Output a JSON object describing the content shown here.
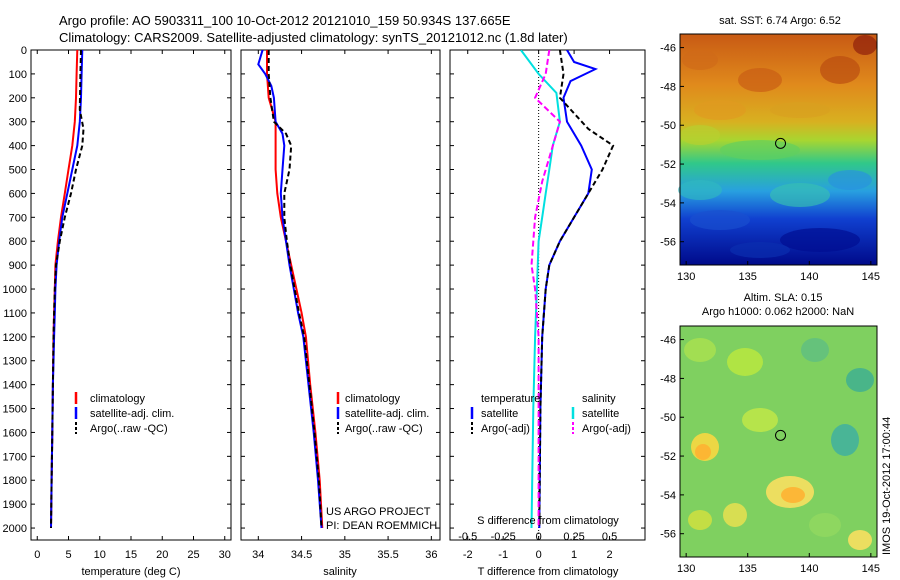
{
  "header": {
    "title_line1": "Argo profile: AO 5903311_100 10-Oct-2012 20121010_159 50.934S 137.665E",
    "title_line2": "Climatology: CARS2009. Satellite-adjusted climatology: synTS_20121012.nc (1.8d later)"
  },
  "credits": {
    "project": "US ARGO PROJECT",
    "pi": "PI: DEAN ROEMMICH",
    "vertical_stamp": "IMOS 19-Oct-2012 17:00:44"
  },
  "colors": {
    "climatology": "#ff0000",
    "satellite_adj": "#0000ff",
    "argo": "#000000",
    "salinity_satellite": "#00e0e0",
    "salinity_argo": "#ff00ff"
  },
  "chart_data": [
    {
      "type": "line",
      "panel": "temperature",
      "xlabel": "temperature (deg C)",
      "xlim": [
        -1,
        31
      ],
      "xticks": [
        0,
        5,
        10,
        15,
        20,
        25,
        30
      ],
      "ylim": [
        0,
        2050
      ],
      "yticks": [
        0,
        100,
        200,
        300,
        400,
        500,
        600,
        700,
        800,
        900,
        1000,
        1100,
        1200,
        1300,
        1400,
        1500,
        1600,
        1700,
        1800,
        1900,
        2000
      ],
      "legend": [
        "climatology",
        "satellite-adj. clim.",
        "Argo(..raw -QC)"
      ],
      "series": [
        {
          "name": "climatology",
          "color": "#ff0000",
          "dash": "",
          "points": [
            [
              6.4,
              0
            ],
            [
              6.3,
              100
            ],
            [
              6.2,
              200
            ],
            [
              6.0,
              300
            ],
            [
              5.6,
              400
            ],
            [
              5.0,
              500
            ],
            [
              4.4,
              600
            ],
            [
              3.8,
              700
            ],
            [
              3.3,
              800
            ],
            [
              2.9,
              900
            ],
            [
              2.8,
              1000
            ],
            [
              2.7,
              1100
            ],
            [
              2.6,
              1200
            ],
            [
              2.5,
              1400
            ],
            [
              2.4,
              1600
            ],
            [
              2.3,
              1800
            ],
            [
              2.2,
              2000
            ]
          ]
        },
        {
          "name": "satellite-adj. clim.",
          "color": "#0000ff",
          "dash": "",
          "points": [
            [
              7.2,
              0
            ],
            [
              7.1,
              100
            ],
            [
              7.0,
              200
            ],
            [
              6.8,
              300
            ],
            [
              6.4,
              400
            ],
            [
              5.6,
              500
            ],
            [
              4.8,
              600
            ],
            [
              4.0,
              700
            ],
            [
              3.5,
              800
            ],
            [
              3.1,
              900
            ],
            [
              2.9,
              1000
            ],
            [
              2.8,
              1100
            ],
            [
              2.7,
              1200
            ],
            [
              2.5,
              1400
            ],
            [
              2.4,
              1600
            ],
            [
              2.3,
              1800
            ],
            [
              2.2,
              2000
            ]
          ]
        },
        {
          "name": "Argo(..raw -QC)",
          "color": "#000000",
          "dash": "5,3",
          "points": [
            [
              7.0,
              0
            ],
            [
              6.9,
              100
            ],
            [
              6.8,
              250
            ],
            [
              7.4,
              330
            ],
            [
              7.2,
              400
            ],
            [
              6.2,
              500
            ],
            [
              5.4,
              600
            ],
            [
              4.4,
              700
            ],
            [
              3.6,
              800
            ],
            [
              3.0,
              900
            ],
            [
              2.8,
              1000
            ],
            [
              2.7,
              1100
            ],
            [
              2.6,
              1200
            ],
            [
              2.5,
              1400
            ],
            [
              2.4,
              1600
            ],
            [
              2.3,
              1800
            ],
            [
              2.2,
              2000
            ]
          ]
        }
      ]
    },
    {
      "type": "line",
      "panel": "salinity",
      "xlabel": "salinity",
      "xlim": [
        33.8,
        36.1
      ],
      "xticks": [
        34,
        34.5,
        35,
        35.5,
        36
      ],
      "ylim": [
        0,
        2050
      ],
      "legend": [
        "climatology",
        "satellite-adj. clim.",
        "Argo(..raw -QC)"
      ],
      "series": [
        {
          "name": "climatology",
          "color": "#ff0000",
          "dash": "",
          "points": [
            [
              34.1,
              0
            ],
            [
              34.1,
              100
            ],
            [
              34.12,
              200
            ],
            [
              34.2,
              300
            ],
            [
              34.2,
              400
            ],
            [
              34.2,
              500
            ],
            [
              34.22,
              600
            ],
            [
              34.26,
              700
            ],
            [
              34.32,
              800
            ],
            [
              34.38,
              900
            ],
            [
              34.44,
              1000
            ],
            [
              34.5,
              1100
            ],
            [
              34.55,
              1200
            ],
            [
              34.6,
              1400
            ],
            [
              34.66,
              1600
            ],
            [
              34.71,
              1800
            ],
            [
              34.74,
              2000
            ]
          ]
        },
        {
          "name": "satellite-adj. clim.",
          "color": "#0000ff",
          "dash": "",
          "points": [
            [
              34.05,
              0
            ],
            [
              34.0,
              60
            ],
            [
              34.08,
              100
            ],
            [
              34.15,
              150
            ],
            [
              34.18,
              200
            ],
            [
              34.2,
              300
            ],
            [
              34.28,
              350
            ],
            [
              34.3,
              400
            ],
            [
              34.28,
              500
            ],
            [
              34.26,
              600
            ],
            [
              34.28,
              700
            ],
            [
              34.32,
              800
            ],
            [
              34.36,
              900
            ],
            [
              34.41,
              1000
            ],
            [
              34.46,
              1100
            ],
            [
              34.52,
              1200
            ],
            [
              34.58,
              1400
            ],
            [
              34.64,
              1600
            ],
            [
              34.69,
              1800
            ],
            [
              34.73,
              2000
            ]
          ]
        },
        {
          "name": "Argo(..raw -QC)",
          "color": "#000000",
          "dash": "5,3",
          "points": [
            [
              34.12,
              0
            ],
            [
              34.12,
              100
            ],
            [
              34.14,
              200
            ],
            [
              34.18,
              300
            ],
            [
              34.32,
              350
            ],
            [
              34.38,
              400
            ],
            [
              34.36,
              500
            ],
            [
              34.3,
              600
            ],
            [
              34.3,
              700
            ],
            [
              34.33,
              800
            ],
            [
              34.37,
              900
            ],
            [
              34.42,
              1000
            ],
            [
              34.47,
              1100
            ],
            [
              34.53,
              1200
            ],
            [
              34.59,
              1400
            ],
            [
              34.65,
              1600
            ],
            [
              34.7,
              1800
            ],
            [
              34.73,
              2000
            ]
          ]
        }
      ]
    },
    {
      "type": "line",
      "panel": "differences",
      "xlabel": "T difference from climatology",
      "xlabel_top": "S difference from climatology",
      "xlim": [
        -2.5,
        3.0
      ],
      "xticks": [
        -2,
        -1,
        0,
        1,
        2
      ],
      "sticks_label": [
        "-0.5",
        "-0.25",
        "0",
        "0.25",
        "0.5"
      ],
      "sticks_pos": [
        -2,
        -1,
        0,
        1,
        2
      ],
      "ylim": [
        0,
        2050
      ],
      "legend_temperature": {
        "header": "temperature",
        "items": [
          "satellite",
          "Argo(-adj)"
        ]
      },
      "legend_salinity": {
        "header": "salinity",
        "items": [
          "satellite",
          "Argo(-adj)"
        ]
      },
      "series": [
        {
          "name": "temperature satellite",
          "color": "#0000ff",
          "dash": "",
          "points": [
            [
              0.8,
              0
            ],
            [
              1.0,
              50
            ],
            [
              1.6,
              80
            ],
            [
              0.9,
              130
            ],
            [
              0.7,
              200
            ],
            [
              0.8,
              300
            ],
            [
              1.2,
              400
            ],
            [
              1.5,
              500
            ],
            [
              1.4,
              600
            ],
            [
              1.0,
              700
            ],
            [
              0.6,
              800
            ],
            [
              0.3,
              900
            ],
            [
              0.2,
              1000
            ],
            [
              0.1,
              1200
            ],
            [
              0.05,
              1500
            ],
            [
              0.02,
              2000
            ]
          ]
        },
        {
          "name": "temperature Argo(-adj)",
          "color": "#000000",
          "dash": "5,3",
          "points": [
            [
              0.6,
              0
            ],
            [
              0.7,
              100
            ],
            [
              0.6,
              200
            ],
            [
              1.4,
              330
            ],
            [
              2.1,
              400
            ],
            [
              1.8,
              500
            ],
            [
              1.4,
              600
            ],
            [
              1.0,
              700
            ],
            [
              0.6,
              800
            ],
            [
              0.3,
              900
            ],
            [
              0.2,
              1000
            ],
            [
              0.1,
              1200
            ],
            [
              0.05,
              1500
            ],
            [
              0.02,
              2000
            ]
          ]
        },
        {
          "name": "salinity satellite",
          "color": "#00e0e0",
          "dash": "",
          "points": [
            [
              -0.5,
              0
            ],
            [
              0.0,
              100
            ],
            [
              0.5,
              180
            ],
            [
              0.6,
              300
            ],
            [
              0.4,
              400
            ],
            [
              0.3,
              500
            ],
            [
              0.2,
              600
            ],
            [
              0.1,
              700
            ],
            [
              0.0,
              800
            ],
            [
              -0.05,
              1000
            ],
            [
              -0.1,
              1200
            ],
            [
              -0.15,
              1500
            ],
            [
              -0.2,
              2000
            ]
          ]
        },
        {
          "name": "salinity Argo(-adj)",
          "color": "#ff00ff",
          "dash": "6,3",
          "points": [
            [
              0.3,
              0
            ],
            [
              0.2,
              100
            ],
            [
              -0.1,
              200
            ],
            [
              0.6,
              300
            ],
            [
              0.5,
              350
            ],
            [
              0.3,
              450
            ],
            [
              0.1,
              550
            ],
            [
              -0.1,
              700
            ],
            [
              -0.2,
              900
            ],
            [
              -0.1,
              1000
            ],
            [
              0.0,
              1200
            ],
            [
              0.0,
              2000
            ]
          ]
        }
      ]
    },
    {
      "type": "heatmap",
      "panel": "satellite SST",
      "title": "sat. SST: 6.74  Argo: 6.52",
      "xticks": [
        130,
        135,
        140,
        145
      ],
      "yticks": [
        -46,
        -48,
        -50,
        -52,
        -54,
        -56
      ],
      "xlim": [
        129.5,
        145.5
      ],
      "ylim": [
        -57.2,
        -45.3
      ],
      "marker": {
        "lon": 137.665,
        "lat": -50.934
      }
    },
    {
      "type": "heatmap",
      "panel": "altimeter SLA",
      "title_line1": "Altim. SLA: 0.15",
      "title_line2": "Argo h1000: 0.062 h2000: NaN",
      "xticks": [
        130,
        135,
        140,
        145
      ],
      "yticks": [
        -46,
        -48,
        -50,
        -52,
        -54,
        -56
      ],
      "xlim": [
        129.5,
        145.5
      ],
      "ylim": [
        -57.2,
        -45.3
      ],
      "marker": {
        "lon": 137.665,
        "lat": -50.934
      }
    }
  ]
}
